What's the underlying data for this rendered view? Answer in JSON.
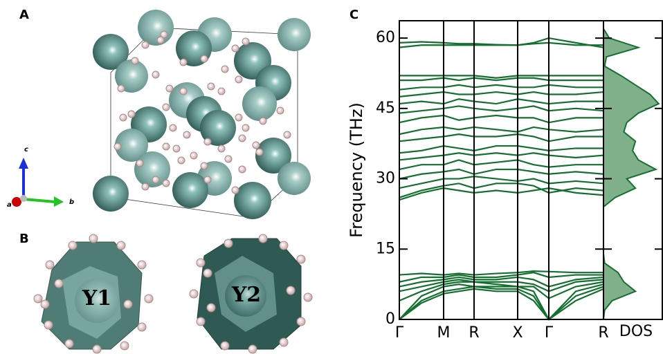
{
  "panels": {
    "a": "A",
    "b": "B",
    "c": "C"
  },
  "axes_labels": {
    "a": "a",
    "b": "b",
    "c": "c"
  },
  "sites": {
    "y1": "Y1",
    "y2": "Y2"
  },
  "chart_data": [
    {
      "type": "line",
      "ylabel": "Frequency (THz)",
      "color": "#13702e",
      "xlim": [
        0,
        2.95
      ],
      "ylim": [
        0,
        63.7
      ],
      "xticks": [
        {
          "value": 0,
          "label": "Γ"
        },
        {
          "value": 0.64,
          "label": "M"
        },
        {
          "value": 1.08,
          "label": "R"
        },
        {
          "value": 1.71,
          "label": "X"
        },
        {
          "value": 2.16,
          "label": "Γ"
        },
        {
          "value": 2.95,
          "label": "R"
        }
      ],
      "yticks": [
        0,
        15,
        30,
        45,
        60
      ],
      "x": [
        0,
        0.32,
        0.64,
        0.86,
        1.08,
        1.4,
        1.71,
        1.94,
        2.16,
        2.55,
        2.95
      ],
      "series": [
        {
          "values": [
            0,
            3.5,
            5.5,
            6,
            6.5,
            6,
            6,
            4,
            0,
            4,
            6.5
          ]
        },
        {
          "values": [
            0,
            4,
            6,
            6.5,
            7,
            6.5,
            6.5,
            5,
            0,
            5,
            7
          ]
        },
        {
          "values": [
            0,
            5,
            7,
            7.5,
            7,
            7,
            7,
            6,
            0,
            6,
            7.5
          ]
        },
        {
          "values": [
            4,
            6,
            7.5,
            8,
            8,
            7.5,
            7,
            7,
            4.5,
            7,
            8
          ]
        },
        {
          "values": [
            6,
            7,
            8,
            8.5,
            8,
            8,
            8,
            7.5,
            6,
            8,
            8.5
          ]
        },
        {
          "values": [
            7,
            8,
            8.5,
            9,
            8.5,
            8.5,
            9,
            8.5,
            7,
            8.5,
            9
          ]
        },
        {
          "values": [
            8,
            9,
            9,
            9.5,
            9,
            9,
            9.5,
            10,
            9,
            9.5,
            9.5
          ]
        },
        {
          "values": [
            9.5,
            9.8,
            9.5,
            9.8,
            9.5,
            9.8,
            10,
            10.3,
            10.2,
            10,
            10
          ]
        },
        {
          "values": [
            25.5,
            27,
            28,
            27.5,
            27,
            27.5,
            27,
            27.5,
            28,
            27,
            26.5
          ]
        },
        {
          "values": [
            26,
            27.5,
            28.5,
            29,
            28,
            29,
            29,
            28.5,
            27,
            28,
            27.5
          ]
        },
        {
          "values": [
            28,
            29,
            30,
            30,
            30.5,
            30,
            29.5,
            30,
            29,
            29.5,
            29
          ]
        },
        {
          "values": [
            30,
            31,
            31.5,
            32,
            31,
            32,
            32,
            31.5,
            31,
            31.5,
            31
          ]
        },
        {
          "values": [
            32,
            33,
            33,
            34,
            33,
            33.5,
            34,
            33,
            32.5,
            33,
            33
          ]
        },
        {
          "values": [
            34,
            34.5,
            35,
            35.5,
            35,
            35.5,
            35,
            35.5,
            35,
            34.5,
            35
          ]
        },
        {
          "values": [
            35.5,
            36,
            37,
            36.5,
            36,
            37,
            37,
            36.5,
            36,
            36.5,
            36.5
          ]
        },
        {
          "values": [
            38,
            38.5,
            39,
            39.5,
            39,
            39,
            39.5,
            39,
            38,
            39,
            39
          ]
        },
        {
          "values": [
            39.5,
            40.5,
            41,
            40.5,
            41,
            40.5,
            40,
            41,
            40.5,
            40,
            40.5
          ]
        },
        {
          "values": [
            42,
            43,
            43.5,
            42.5,
            43,
            43.5,
            43,
            43,
            42,
            43,
            43
          ]
        },
        {
          "values": [
            44,
            44.5,
            45,
            45.5,
            45,
            44.5,
            45,
            45.5,
            44.5,
            45,
            44.5
          ]
        },
        {
          "values": [
            46,
            46.5,
            46,
            47,
            46.5,
            46,
            47,
            46.5,
            46,
            46.5,
            46.5
          ]
        },
        {
          "values": [
            47.5,
            48,
            48.5,
            48,
            48,
            48.5,
            48,
            48.5,
            48,
            48,
            48.5
          ]
        },
        {
          "values": [
            49,
            49.5,
            49.5,
            50,
            49.5,
            50,
            49.5,
            49.5,
            50,
            49.5,
            49.5
          ]
        },
        {
          "values": [
            51,
            51,
            51.5,
            51,
            51.5,
            51,
            51.5,
            51.5,
            51,
            51,
            51
          ]
        },
        {
          "values": [
            52,
            52,
            52,
            52,
            52,
            51.5,
            52,
            52,
            52,
            52,
            52
          ]
        },
        {
          "values": [
            58,
            58.5,
            58.5,
            58.5,
            58.5,
            58.5,
            58.5,
            59,
            60,
            59,
            58
          ]
        },
        {
          "values": [
            59,
            59.2,
            59,
            58.8,
            58.8,
            58.6,
            58.5,
            58.8,
            59,
            58.5,
            58.5
          ]
        }
      ]
    },
    {
      "type": "area",
      "xlabel": "DOS",
      "color": "#13702e",
      "fill": "#7fb08a",
      "xlim": [
        0,
        1
      ],
      "ylim": [
        0,
        63.7
      ],
      "y": [
        0,
        2,
        4,
        6,
        8,
        10,
        12,
        14,
        16,
        18,
        20,
        22,
        24,
        26,
        28,
        30,
        32,
        34,
        36,
        38,
        40,
        42,
        44,
        46,
        48,
        50,
        52,
        54,
        56,
        58,
        60,
        62
      ],
      "values": [
        0,
        0.02,
        0.15,
        0.55,
        0.35,
        0.25,
        0.02,
        0,
        0,
        0,
        0,
        0,
        0,
        0.2,
        0.55,
        0.4,
        0.9,
        0.6,
        0.5,
        0.55,
        0.35,
        0.4,
        0.6,
        0.95,
        0.8,
        0.55,
        0.3,
        0.02,
        0.05,
        0.6,
        0.1,
        0
      ]
    }
  ]
}
